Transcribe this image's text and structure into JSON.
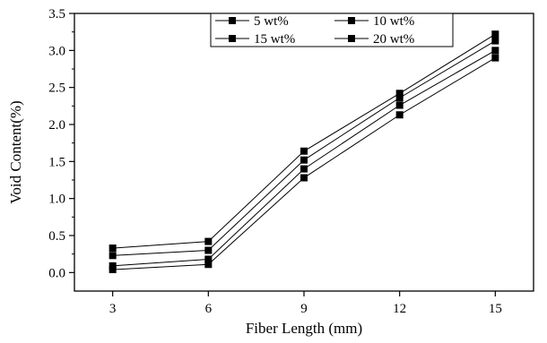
{
  "chart_data": {
    "type": "line",
    "title": "",
    "xlabel": "Fiber Length (mm)",
    "ylabel": "Void Content(%)",
    "x": [
      3,
      6,
      9,
      12,
      15
    ],
    "xticks": [
      "3",
      "6",
      "9",
      "12",
      "15"
    ],
    "xlim": [
      1.8,
      16.2
    ],
    "ylim": [
      -0.25,
      3.5
    ],
    "yticks": [
      "0.0",
      "0.5",
      "1.0",
      "1.5",
      "2.0",
      "2.5",
      "3.0",
      "3.5"
    ],
    "grid": false,
    "legend_position": "top-right",
    "series": [
      {
        "name": "5 wt%",
        "values": [
          0.04,
          0.11,
          1.28,
          2.13,
          2.9
        ]
      },
      {
        "name": "10 wt%",
        "values": [
          0.09,
          0.18,
          1.4,
          2.26,
          3.0
        ]
      },
      {
        "name": "15 wt%",
        "values": [
          0.23,
          0.3,
          1.52,
          2.36,
          3.13
        ]
      },
      {
        "name": "20 wt%",
        "values": [
          0.33,
          0.42,
          1.64,
          2.42,
          3.22
        ]
      }
    ],
    "line_color": "#000000",
    "marker": "square"
  }
}
